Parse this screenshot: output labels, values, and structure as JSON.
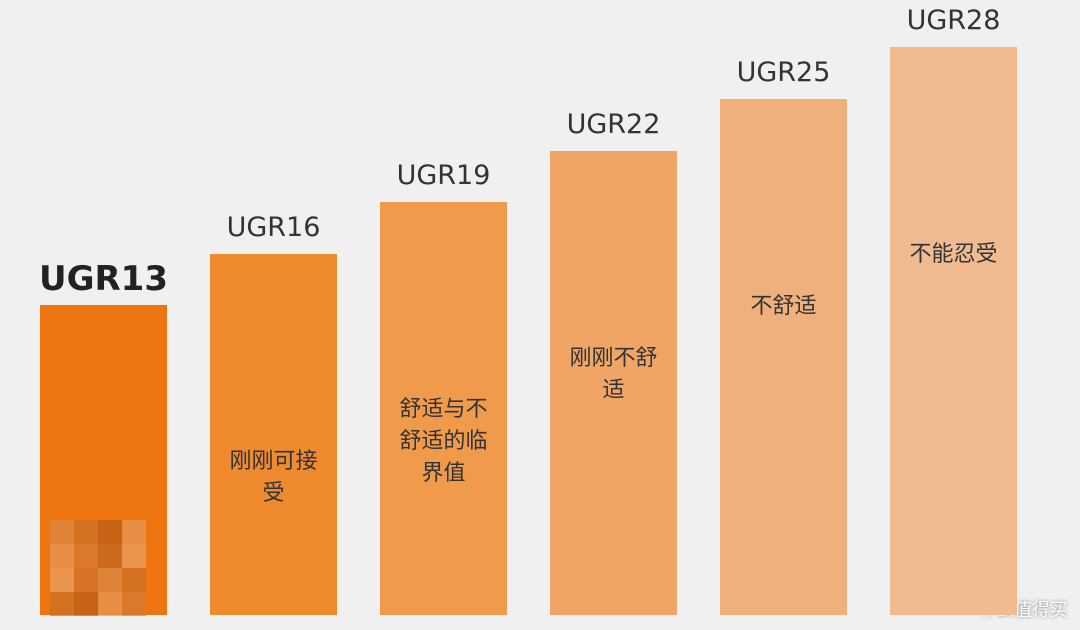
{
  "chart_data": {
    "type": "bar",
    "categories": [
      "UGR13",
      "UGR16",
      "UGR19",
      "UGR22",
      "UGR25",
      "UGR28"
    ],
    "values": [
      13,
      16,
      19,
      22,
      25,
      28
    ],
    "colors": [
      "#ee7410",
      "#ef8a2e",
      "#f09a4c",
      "#f0a566",
      "#f0b07c",
      "#f0bb90"
    ],
    "descriptions": [
      null,
      "刚刚可接受",
      "舒适与不舒适的临界值",
      "刚刚不舒适",
      "不舒适",
      "不能忍受"
    ],
    "ylim": [
      -5,
      30
    ]
  },
  "watermark": "什么值得买"
}
